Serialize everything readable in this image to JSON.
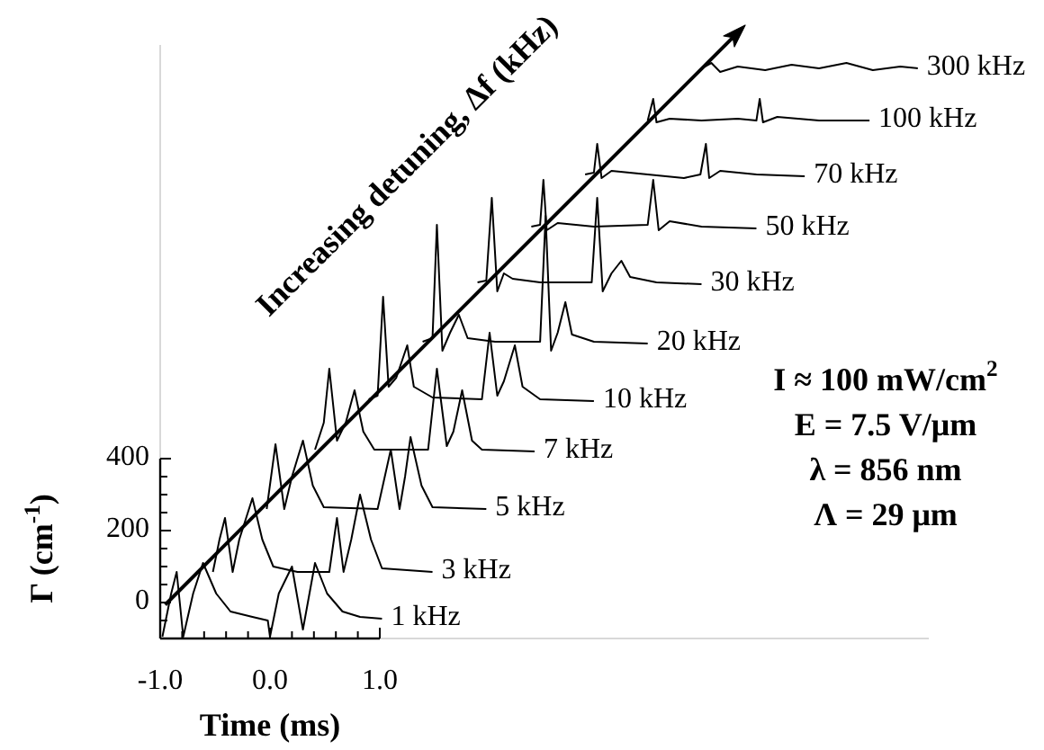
{
  "chart_data": {
    "type": "line",
    "xlabel": "Time (ms)",
    "ylabel": "Γ (cm$^{-1}$)",
    "xlim": [
      -1,
      6
    ],
    "ylim": [
      -100,
      1550
    ],
    "xticks": [
      {
        "value": -1,
        "label": "-1.0"
      },
      {
        "value": -0.8,
        "label": null
      },
      {
        "value": -0.6,
        "label": null
      },
      {
        "value": -0.4,
        "label": null
      },
      {
        "value": -0.2,
        "label": null
      },
      {
        "value": 0,
        "label": "0.0"
      },
      {
        "value": 0.2,
        "label": null
      },
      {
        "value": 0.4,
        "label": null
      },
      {
        "value": 0.6,
        "label": null
      },
      {
        "value": 0.8,
        "label": null
      },
      {
        "value": 1,
        "label": "1.0"
      }
    ],
    "yticks": [
      {
        "value": -50,
        "label": null
      },
      0,
      {
        "value": 50,
        "label": null
      },
      {
        "value": 100,
        "label": null
      },
      {
        "value": 150,
        "label": null
      },
      200,
      {
        "value": 250,
        "label": null
      },
      {
        "value": 300,
        "label": null
      },
      {
        "value": 350,
        "label": null
      },
      400
    ],
    "grid": false,
    "marker": "none",
    "line_style": "solid",
    "annotations": [
      "Increasing detuning, Δf (kHz)",
      "I ≈ 100 mW/cm$^{2}$",
      "E = 7.5 V/μm",
      "λ = 856 nm",
      "Λ = 29 μm"
    ],
    "series": [
      {
        "name": "1 kHz",
        "color": "#000000",
        "x": [
          -0.98,
          -0.9,
          -0.85,
          -0.79,
          -0.7,
          -0.61,
          -0.49,
          -0.36,
          -0.16,
          -0.02,
          0.0,
          0.08,
          0.2,
          0.3,
          0.41,
          0.52,
          0.66,
          0.82,
          1.02
        ],
        "values": [
          -95,
          25,
          85,
          -95,
          25,
          110,
          25,
          -25,
          -40,
          -50,
          -95,
          25,
          100,
          -75,
          110,
          25,
          -25,
          -40,
          -45
        ]
      },
      {
        "name": "3 kHz",
        "color": "#000000",
        "x": [
          -0.52,
          -0.46,
          -0.41,
          -0.34,
          -0.28,
          -0.16,
          -0.07,
          0.03,
          0.25,
          0.54,
          0.61,
          0.67,
          0.74,
          0.82,
          0.92,
          1.02,
          1.48
        ],
        "values": [
          85,
          175,
          235,
          85,
          175,
          290,
          175,
          100,
          85,
          85,
          235,
          85,
          175,
          300,
          175,
          95,
          85
        ]
      },
      {
        "name": "5 kHz",
        "color": "#000000",
        "x": [
          -0.03,
          0.05,
          0.13,
          0.2,
          0.3,
          0.39,
          0.49,
          0.98,
          1.1,
          1.18,
          1.23,
          1.28,
          1.38,
          1.48,
          1.97
        ],
        "values": [
          260,
          440,
          260,
          350,
          450,
          325,
          265,
          260,
          425,
          260,
          350,
          460,
          325,
          265,
          260
        ]
      },
      {
        "name": "7 kHz",
        "color": "#000000",
        "x": [
          0.41,
          0.49,
          0.54,
          0.61,
          0.69,
          0.77,
          0.85,
          0.95,
          1.44,
          1.52,
          1.61,
          1.67,
          1.75,
          1.84,
          1.93,
          2.41
        ],
        "values": [
          425,
          500,
          650,
          450,
          500,
          590,
          475,
          425,
          425,
          650,
          435,
          475,
          590,
          450,
          425,
          420
        ]
      },
      {
        "name": "10 kHz",
        "color": "#000000",
        "x": [
          0.9,
          0.98,
          1.03,
          1.08,
          1.15,
          1.25,
          1.31,
          1.48,
          1.93,
          2.0,
          2.07,
          2.13,
          2.23,
          2.3,
          2.46,
          2.95
        ],
        "values": [
          565,
          575,
          850,
          600,
          625,
          715,
          600,
          570,
          565,
          750,
          575,
          615,
          715,
          600,
          565,
          560
        ]
      },
      {
        "name": "20 kHz",
        "color": "#000000",
        "x": [
          1.39,
          1.48,
          1.52,
          1.57,
          1.64,
          1.72,
          1.8,
          2.05,
          2.46,
          2.51,
          2.56,
          2.62,
          2.69,
          2.75,
          2.95,
          3.44
        ],
        "values": [
          725,
          735,
          1050,
          700,
          750,
          800,
          735,
          725,
          725,
          1075,
          700,
          750,
          835,
          745,
          725,
          720
        ]
      },
      {
        "name": "30 kHz",
        "color": "#000000",
        "x": [
          1.89,
          1.97,
          2.02,
          2.07,
          2.13,
          2.21,
          2.46,
          2.93,
          2.98,
          3.03,
          3.11,
          3.2,
          3.28,
          3.52,
          3.93
        ],
        "values": [
          890,
          895,
          1125,
          865,
          915,
          900,
          890,
          890,
          1125,
          865,
          915,
          950,
          905,
          890,
          885
        ]
      },
      {
        "name": "50 kHz",
        "color": "#000000",
        "x": [
          2.38,
          2.46,
          2.49,
          2.52,
          2.62,
          2.95,
          3.44,
          3.49,
          3.54,
          3.64,
          3.93,
          4.43
        ],
        "values": [
          1045,
          1050,
          1175,
          1035,
          1055,
          1045,
          1050,
          1175,
          1035,
          1060,
          1045,
          1040
        ]
      },
      {
        "name": "70 kHz",
        "color": "#000000",
        "x": [
          2.87,
          2.95,
          2.98,
          3.02,
          3.11,
          3.44,
          3.77,
          3.92,
          3.97,
          4.0,
          4.1,
          4.43,
          4.87
        ],
        "values": [
          1190,
          1195,
          1275,
          1180,
          1200,
          1190,
          1180,
          1190,
          1275,
          1180,
          1200,
          1190,
          1185
        ]
      },
      {
        "name": "100 kHz",
        "color": "#000000",
        "x": [
          3.44,
          3.49,
          3.52,
          3.64,
          3.93,
          4.26,
          4.43,
          4.46,
          4.49,
          4.62,
          5.0,
          5.46
        ],
        "values": [
          1340,
          1400,
          1335,
          1345,
          1340,
          1345,
          1340,
          1400,
          1335,
          1350,
          1340,
          1340
        ]
      },
      {
        "name": "300 kHz",
        "color": "#000000",
        "x": [
          3.93,
          4.02,
          4.1,
          4.26,
          4.51,
          4.75,
          5.0,
          5.25,
          5.49,
          5.74,
          5.9
        ],
        "values": [
          1485,
          1500,
          1475,
          1490,
          1480,
          1495,
          1485,
          1500,
          1480,
          1490,
          1485
        ]
      }
    ]
  }
}
